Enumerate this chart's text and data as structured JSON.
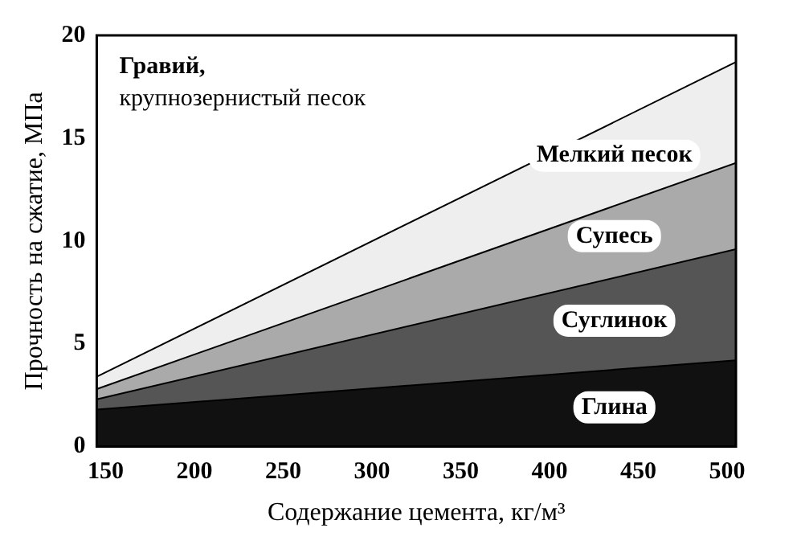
{
  "chart_data": {
    "type": "area",
    "stacked": true,
    "xlabel": "Содержание цемента, кг/м³",
    "ylabel": "Прочность на сжатие, МПа",
    "annotations": [
      "Гравий,\nкрупнозернистый песок"
    ],
    "x": [
      145,
      505
    ],
    "series": [
      {
        "name": "Глина",
        "color": "#111111",
        "values": [
          1.8,
          4.2
        ]
      },
      {
        "name": "Суглинок",
        "color": "#555555",
        "values": [
          0.5,
          5.4
        ]
      },
      {
        "name": "Супесь",
        "color": "#aaaaaa",
        "values": [
          0.5,
          4.2
        ]
      },
      {
        "name": "Мелкий песок",
        "color": "#eeeeee",
        "values": [
          0.6,
          4.9
        ]
      }
    ],
    "xlim": [
      145,
      505
    ],
    "xticks": [
      150,
      200,
      250,
      300,
      350,
      400,
      450,
      500
    ],
    "ylim": [
      0,
      20
    ],
    "yticks": [
      0,
      5,
      10,
      15,
      20
    ],
    "grid": false,
    "legend": false
  }
}
